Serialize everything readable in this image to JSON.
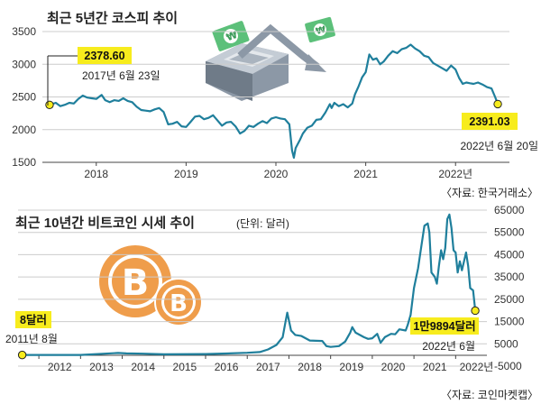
{
  "colors": {
    "line": "#1f7f9c",
    "highlight": "#f7ec1d",
    "coin": "#ef9d4b",
    "grid": "#cccccc",
    "text": "#222222"
  },
  "chart_data": [
    {
      "type": "line",
      "title": "최근 5년간 코스피 추이",
      "xlabel": "",
      "ylabel": "",
      "ylim": [
        1500,
        3500
      ],
      "yticks": [
        "3500",
        "3000",
        "2500",
        "2000",
        "1500"
      ],
      "xticks": [
        "2018",
        "2019",
        "2020",
        "2021",
        "2022년"
      ],
      "source": "〈자료: 한국거래소〉",
      "start": {
        "value_label": "2378.60",
        "date_label": "2017년 6월 23일"
      },
      "end": {
        "value_label": "2391.03",
        "date_label": "2022년 6월 20일"
      },
      "series": [
        {
          "values": [
            [
              2017.48,
              2378.6
            ],
            [
              2017.55,
              2410
            ],
            [
              2017.6,
              2360
            ],
            [
              2017.65,
              2380
            ],
            [
              2017.7,
              2410
            ],
            [
              2017.75,
              2400
            ],
            [
              2017.8,
              2470
            ],
            [
              2017.85,
              2520
            ],
            [
              2017.9,
              2490
            ],
            [
              2017.95,
              2480
            ],
            [
              2018.0,
              2470
            ],
            [
              2018.06,
              2530
            ],
            [
              2018.1,
              2450
            ],
            [
              2018.15,
              2420
            ],
            [
              2018.2,
              2450
            ],
            [
              2018.25,
              2440
            ],
            [
              2018.3,
              2480
            ],
            [
              2018.35,
              2440
            ],
            [
              2018.4,
              2420
            ],
            [
              2018.45,
              2350
            ],
            [
              2018.5,
              2300
            ],
            [
              2018.55,
              2290
            ],
            [
              2018.6,
              2280
            ],
            [
              2018.65,
              2310
            ],
            [
              2018.7,
              2330
            ],
            [
              2018.75,
              2270
            ],
            [
              2018.8,
              2080
            ],
            [
              2018.85,
              2090
            ],
            [
              2018.9,
              2120
            ],
            [
              2018.95,
              2050
            ],
            [
              2019.0,
              2040
            ],
            [
              2019.05,
              2120
            ],
            [
              2019.1,
              2200
            ],
            [
              2019.15,
              2210
            ],
            [
              2019.2,
              2160
            ],
            [
              2019.25,
              2180
            ],
            [
              2019.3,
              2220
            ],
            [
              2019.35,
              2140
            ],
            [
              2019.4,
              2060
            ],
            [
              2019.45,
              2110
            ],
            [
              2019.5,
              2120
            ],
            [
              2019.55,
              2050
            ],
            [
              2019.6,
              1940
            ],
            [
              2019.65,
              1980
            ],
            [
              2019.7,
              2060
            ],
            [
              2019.75,
              2040
            ],
            [
              2019.8,
              2090
            ],
            [
              2019.85,
              2130
            ],
            [
              2019.9,
              2100
            ],
            [
              2019.95,
              2170
            ],
            [
              2020.0,
              2190
            ],
            [
              2020.05,
              2170
            ],
            [
              2020.1,
              2160
            ],
            [
              2020.15,
              2080
            ],
            [
              2020.18,
              1680
            ],
            [
              2020.2,
              1570
            ],
            [
              2020.22,
              1720
            ],
            [
              2020.27,
              1850
            ],
            [
              2020.3,
              1940
            ],
            [
              2020.35,
              2030
            ],
            [
              2020.4,
              2060
            ],
            [
              2020.45,
              2150
            ],
            [
              2020.5,
              2160
            ],
            [
              2020.55,
              2260
            ],
            [
              2020.6,
              2390
            ],
            [
              2020.62,
              2330
            ],
            [
              2020.65,
              2410
            ],
            [
              2020.7,
              2360
            ],
            [
              2020.75,
              2390
            ],
            [
              2020.8,
              2340
            ],
            [
              2020.85,
              2400
            ],
            [
              2020.88,
              2540
            ],
            [
              2020.92,
              2660
            ],
            [
              2020.96,
              2800
            ],
            [
              2021.0,
              2880
            ],
            [
              2021.04,
              3150
            ],
            [
              2021.08,
              3070
            ],
            [
              2021.12,
              3090
            ],
            [
              2021.16,
              3000
            ],
            [
              2021.2,
              3040
            ],
            [
              2021.25,
              3130
            ],
            [
              2021.3,
              3200
            ],
            [
              2021.35,
              3170
            ],
            [
              2021.4,
              3230
            ],
            [
              2021.45,
              3250
            ],
            [
              2021.5,
              3300
            ],
            [
              2021.55,
              3240
            ],
            [
              2021.6,
              3200
            ],
            [
              2021.65,
              3130
            ],
            [
              2021.7,
              3110
            ],
            [
              2021.75,
              3020
            ],
            [
              2021.8,
              2980
            ],
            [
              2021.85,
              2940
            ],
            [
              2021.9,
              2900
            ],
            [
              2021.95,
              2980
            ],
            [
              2022.0,
              2920
            ],
            [
              2022.04,
              2790
            ],
            [
              2022.08,
              2700
            ],
            [
              2022.12,
              2720
            ],
            [
              2022.16,
              2710
            ],
            [
              2022.2,
              2700
            ],
            [
              2022.25,
              2720
            ],
            [
              2022.3,
              2690
            ],
            [
              2022.35,
              2650
            ],
            [
              2022.4,
              2630
            ],
            [
              2022.44,
              2500
            ],
            [
              2022.47,
              2391.03
            ]
          ]
        }
      ]
    },
    {
      "type": "line",
      "title": "최근 10년간 비트코인 시세 추이",
      "unit_label": "(단위: 달러)",
      "xlabel": "",
      "ylabel": "",
      "ylim": [
        -5000,
        65000
      ],
      "yticks": [
        "65000",
        "55000",
        "45000",
        "35000",
        "25000",
        "15000",
        "5000",
        "-5000"
      ],
      "xticks": [
        "2012",
        "2013",
        "2014",
        "2015",
        "2016",
        "2017",
        "2018",
        "2019",
        "2020",
        "2021",
        "2022년"
      ],
      "source": "〈자료: 코인마켓캡〉",
      "start": {
        "value_label": "8달러",
        "date_label": "2011년 8월"
      },
      "end": {
        "value_label": "1만9894달러",
        "date_label": "2022년 6월"
      },
      "series": [
        {
          "values": [
            [
              2011.6,
              8
            ],
            [
              2012.0,
              5
            ],
            [
              2013.0,
              13
            ],
            [
              2013.9,
              900
            ],
            [
              2014.1,
              700
            ],
            [
              2014.5,
              600
            ],
            [
              2015.0,
              300
            ],
            [
              2016.0,
              430
            ],
            [
              2016.5,
              650
            ],
            [
              2017.0,
              1000
            ],
            [
              2017.3,
              1300
            ],
            [
              2017.5,
              2500
            ],
            [
              2017.7,
              4500
            ],
            [
              2017.85,
              8000
            ],
            [
              2017.92,
              15000
            ],
            [
              2017.96,
              19000
            ],
            [
              2018.05,
              11000
            ],
            [
              2018.15,
              9000
            ],
            [
              2018.3,
              8500
            ],
            [
              2018.5,
              6500
            ],
            [
              2018.8,
              6300
            ],
            [
              2018.9,
              4000
            ],
            [
              2019.0,
              3600
            ],
            [
              2019.2,
              4000
            ],
            [
              2019.35,
              6000
            ],
            [
              2019.47,
              10000
            ],
            [
              2019.52,
              12500
            ],
            [
              2019.6,
              10000
            ],
            [
              2019.7,
              9000
            ],
            [
              2019.8,
              8000
            ],
            [
              2019.9,
              7200
            ],
            [
              2020.0,
              7500
            ],
            [
              2020.12,
              9500
            ],
            [
              2020.2,
              5500
            ],
            [
              2020.3,
              8000
            ],
            [
              2020.45,
              9500
            ],
            [
              2020.55,
              9300
            ],
            [
              2020.65,
              11500
            ],
            [
              2020.8,
              11000
            ],
            [
              2020.85,
              13500
            ],
            [
              2020.92,
              18000
            ],
            [
              2021.0,
              30000
            ],
            [
              2021.1,
              39000
            ],
            [
              2021.17,
              48000
            ],
            [
              2021.25,
              58000
            ],
            [
              2021.33,
              59000
            ],
            [
              2021.37,
              55000
            ],
            [
              2021.42,
              37000
            ],
            [
              2021.5,
              35000
            ],
            [
              2021.55,
              32000
            ],
            [
              2021.6,
              40000
            ],
            [
              2021.65,
              47000
            ],
            [
              2021.7,
              43000
            ],
            [
              2021.75,
              48000
            ],
            [
              2021.8,
              61000
            ],
            [
              2021.85,
              63000
            ],
            [
              2021.9,
              57000
            ],
            [
              2021.95,
              47000
            ],
            [
              2022.0,
              46000
            ],
            [
              2022.05,
              37000
            ],
            [
              2022.1,
              42000
            ],
            [
              2022.15,
              38000
            ],
            [
              2022.25,
              46000
            ],
            [
              2022.3,
              40000
            ],
            [
              2022.35,
              30000
            ],
            [
              2022.42,
              29000
            ],
            [
              2022.47,
              19894
            ]
          ]
        }
      ]
    }
  ]
}
